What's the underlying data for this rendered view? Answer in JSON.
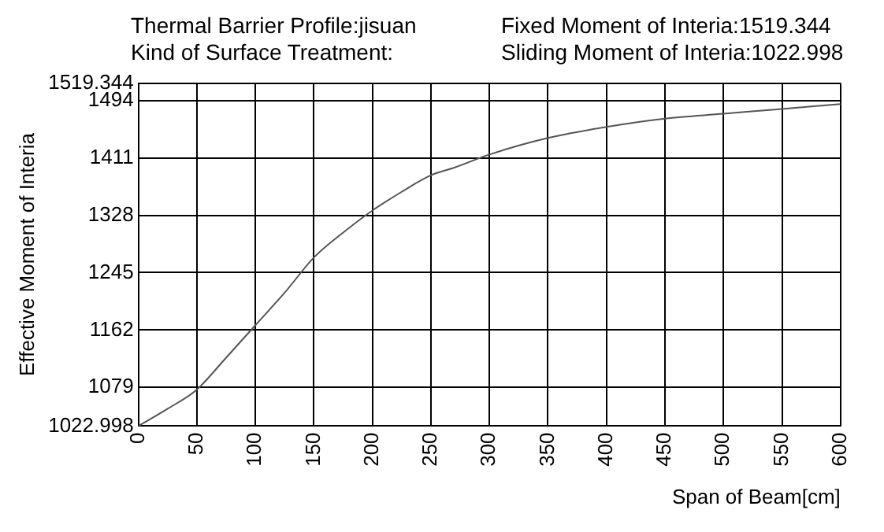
{
  "chart_data": {
    "type": "line",
    "title": "Thermal Barrier Profile:jisuan",
    "subtitle": "Kind of Surface Treatment:",
    "annotations": [
      "Fixed Moment of Interia:1519.344",
      "Sliding Moment of Interia:1022.998"
    ],
    "xlabel": "Span of Beam[cm]",
    "ylabel": "Effective Moment of Interia",
    "x": [
      0,
      25,
      50,
      75,
      100,
      125,
      150,
      175,
      200,
      225,
      250,
      270,
      300,
      350,
      400,
      450,
      500,
      550,
      600
    ],
    "series": [
      {
        "color": "#555555",
        "values": [
          1023,
          1048,
          1076,
          1122,
          1169,
          1216,
          1267,
          1303,
          1335,
          1362,
          1386,
          1397,
          1416,
          1440,
          1456,
          1468,
          1475,
          1482,
          1489
        ]
      }
    ],
    "xlim": [
      0,
      600
    ],
    "xticks": [
      0,
      50,
      100,
      150,
      200,
      250,
      300,
      350,
      400,
      450,
      500,
      550,
      600
    ],
    "ylim": [
      1022.998,
      1519.344
    ],
    "yticks": [
      1022.998,
      1079,
      1162,
      1245,
      1328,
      1411,
      1494,
      1519.344
    ],
    "grid": true,
    "legend": false,
    "marker": "none",
    "line_style": "solid"
  }
}
